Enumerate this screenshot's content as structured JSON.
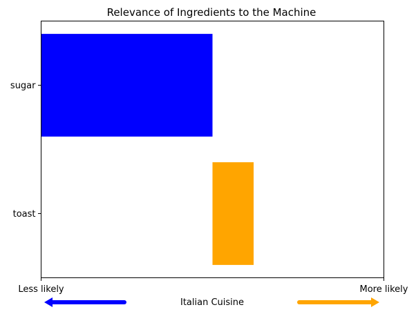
{
  "chart_data": {
    "type": "bar",
    "orientation": "horizontal",
    "title": "Relevance of Ingredients to the Machine",
    "xlabel": "Italian Cuisine",
    "ylabel": "",
    "xlim": [
      -1,
      1
    ],
    "x_tick_labels": {
      "left": "Less likely",
      "right": "More likely"
    },
    "categories": [
      "sugar",
      "toast"
    ],
    "bars": [
      {
        "category": "sugar",
        "start": -1.0,
        "end": 0.0,
        "color": "#0000ff"
      },
      {
        "category": "toast",
        "start": 0.0,
        "end": 0.24,
        "color": "#ffa500"
      }
    ],
    "direction_arrows": [
      {
        "direction": "left",
        "meaning": "Less likely",
        "color": "#0000ff"
      },
      {
        "direction": "right",
        "meaning": "More likely",
        "color": "#ffa500"
      }
    ],
    "grid": false,
    "legend": "none"
  }
}
